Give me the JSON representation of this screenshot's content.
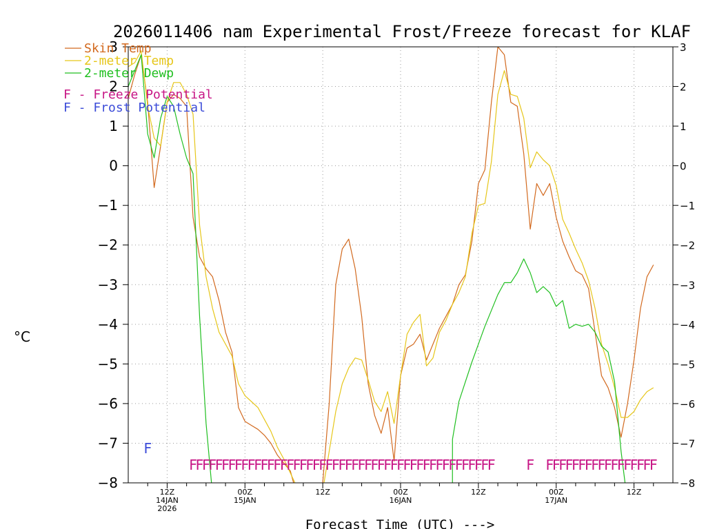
{
  "chart_data": {
    "type": "line",
    "title": "2026011406 nam Experimental Frost/Freeze forecast for KLAF",
    "ylabel": "°C",
    "xlabel": "Forecast Time (UTC) --->",
    "ylim": [
      -8,
      3
    ],
    "y_ticks": [
      3,
      2,
      1,
      0,
      -1,
      -2,
      -3,
      -4,
      -5,
      -6,
      -7,
      -8
    ],
    "y_tick_labels": [
      "3",
      "2",
      "1",
      "0",
      "−1",
      "−2",
      "−3",
      "−4",
      "−5",
      "−6",
      "−7",
      "−8"
    ],
    "y_tick_labels_right": [
      "3",
      "2",
      "1",
      "0",
      "−1",
      "−2",
      "−3",
      "−4",
      "−5",
      "−6",
      "−7",
      "−8"
    ],
    "xlim_hours": [
      0,
      84
    ],
    "x_ticks": [
      {
        "hour": 6,
        "line1": "12Z",
        "line2": "14JAN",
        "line3": "2026"
      },
      {
        "hour": 18,
        "line1": "00Z",
        "line2": "15JAN",
        "line3": ""
      },
      {
        "hour": 30,
        "line1": "12Z",
        "line2": "",
        "line3": ""
      },
      {
        "hour": 42,
        "line1": "00Z",
        "line2": "16JAN",
        "line3": ""
      },
      {
        "hour": 54,
        "line1": "12Z",
        "line2": "",
        "line3": ""
      },
      {
        "hour": 66,
        "line1": "00Z",
        "line2": "17JAN",
        "line3": ""
      },
      {
        "hour": 78,
        "line1": "12Z",
        "line2": "",
        "line3": ""
      }
    ],
    "legend": [
      {
        "label": "Skin Temp",
        "color": "#d2691e"
      },
      {
        "label": "2-meter Temp",
        "color": "#e6c619"
      },
      {
        "label": "2-meter Dewp",
        "color": "#1fbf1f"
      },
      {
        "label": "F - Freeze Potential",
        "color": "#c71585"
      },
      {
        "label": "F - Frost Potential",
        "color": "#3b4bd8"
      }
    ],
    "series": [
      {
        "name": "Skin Temp",
        "color": "#d2691e",
        "points": [
          [
            0,
            1.7
          ],
          [
            1,
            2.3
          ],
          [
            2,
            2.8
          ],
          [
            3,
            1.6
          ],
          [
            4,
            -0.55
          ],
          [
            5,
            0.5
          ],
          [
            6,
            1.6
          ],
          [
            7,
            1.8
          ],
          [
            8,
            1.7
          ],
          [
            9,
            1.5
          ],
          [
            10,
            -1.3
          ],
          [
            11,
            -2.3
          ],
          [
            12,
            -2.6
          ],
          [
            13,
            -2.8
          ],
          [
            14,
            -3.4
          ],
          [
            15,
            -4.2
          ],
          [
            16,
            -4.7
          ],
          [
            17,
            -6.1
          ],
          [
            18,
            -6.45
          ],
          [
            19,
            -6.55
          ],
          [
            20,
            -6.65
          ],
          [
            21,
            -6.8
          ],
          [
            22,
            -7.0
          ],
          [
            23,
            -7.3
          ],
          [
            24,
            -7.5
          ],
          [
            25,
            -7.7
          ],
          [
            26,
            -8.3
          ],
          [
            27,
            -8.6
          ],
          [
            28,
            -8.8
          ],
          [
            29,
            -8.5
          ],
          [
            30,
            -8.0
          ],
          [
            31,
            -6.0
          ],
          [
            32,
            -3.0
          ],
          [
            33,
            -2.1
          ],
          [
            34,
            -1.85
          ],
          [
            35,
            -2.6
          ],
          [
            36,
            -3.8
          ],
          [
            37,
            -5.5
          ],
          [
            38,
            -6.3
          ],
          [
            39,
            -6.75
          ],
          [
            40,
            -6.1
          ],
          [
            41,
            -7.45
          ],
          [
            42,
            -5.3
          ],
          [
            43,
            -4.6
          ],
          [
            44,
            -4.5
          ],
          [
            45,
            -4.25
          ],
          [
            46,
            -4.9
          ],
          [
            47,
            -4.5
          ],
          [
            48,
            -4.1
          ],
          [
            49,
            -3.8
          ],
          [
            50,
            -3.5
          ],
          [
            51,
            -3.0
          ],
          [
            52,
            -2.75
          ],
          [
            53,
            -1.9
          ],
          [
            54,
            -0.45
          ],
          [
            55,
            -0.1
          ],
          [
            56,
            1.6
          ],
          [
            57,
            3.0
          ],
          [
            58,
            2.8
          ],
          [
            59,
            1.6
          ],
          [
            60,
            1.5
          ],
          [
            61,
            0.3
          ],
          [
            62,
            -1.6
          ],
          [
            63,
            -0.45
          ],
          [
            64,
            -0.75
          ],
          [
            65,
            -0.45
          ],
          [
            66,
            -1.3
          ],
          [
            67,
            -1.9
          ],
          [
            68,
            -2.3
          ],
          [
            69,
            -2.65
          ],
          [
            70,
            -2.75
          ],
          [
            71,
            -3.1
          ],
          [
            72,
            -4.2
          ],
          [
            73,
            -5.3
          ],
          [
            74,
            -5.6
          ],
          [
            75,
            -6.1
          ],
          [
            76,
            -6.85
          ],
          [
            77,
            -6.0
          ],
          [
            78,
            -4.9
          ],
          [
            79,
            -3.6
          ],
          [
            80,
            -2.8
          ],
          [
            81,
            -2.5
          ]
        ]
      },
      {
        "name": "2-meter Temp",
        "color": "#e6c619",
        "points": [
          [
            0,
            2.5
          ],
          [
            1,
            2.6
          ],
          [
            2,
            2.9
          ],
          [
            3,
            1.5
          ],
          [
            4,
            0.7
          ],
          [
            5,
            0.5
          ],
          [
            6,
            1.6
          ],
          [
            7,
            2.1
          ],
          [
            8,
            2.1
          ],
          [
            9,
            1.8
          ],
          [
            10,
            1.3
          ],
          [
            11,
            -1.5
          ],
          [
            12,
            -2.8
          ],
          [
            13,
            -3.6
          ],
          [
            14,
            -4.2
          ],
          [
            15,
            -4.5
          ],
          [
            16,
            -4.8
          ],
          [
            17,
            -5.5
          ],
          [
            18,
            -5.8
          ],
          [
            19,
            -5.95
          ],
          [
            20,
            -6.1
          ],
          [
            21,
            -6.4
          ],
          [
            22,
            -6.7
          ],
          [
            23,
            -7.1
          ],
          [
            24,
            -7.4
          ],
          [
            25,
            -7.75
          ],
          [
            26,
            -8.1
          ],
          [
            27,
            -8.4
          ],
          [
            28,
            -8.6
          ],
          [
            29,
            -8.5
          ],
          [
            30,
            -8.2
          ],
          [
            31,
            -7.2
          ],
          [
            32,
            -6.2
          ],
          [
            33,
            -5.5
          ],
          [
            34,
            -5.1
          ],
          [
            35,
            -4.85
          ],
          [
            36,
            -4.9
          ],
          [
            37,
            -5.4
          ],
          [
            38,
            -5.95
          ],
          [
            39,
            -6.2
          ],
          [
            40,
            -5.7
          ],
          [
            41,
            -6.5
          ],
          [
            42,
            -5.3
          ],
          [
            43,
            -4.25
          ],
          [
            44,
            -3.95
          ],
          [
            45,
            -3.75
          ],
          [
            46,
            -5.05
          ],
          [
            47,
            -4.85
          ],
          [
            48,
            -4.2
          ],
          [
            49,
            -3.9
          ],
          [
            50,
            -3.5
          ],
          [
            51,
            -3.2
          ],
          [
            52,
            -2.8
          ],
          [
            53,
            -1.7
          ],
          [
            54,
            -1.0
          ],
          [
            55,
            -0.95
          ],
          [
            56,
            0.1
          ],
          [
            57,
            1.8
          ],
          [
            58,
            2.4
          ],
          [
            59,
            1.8
          ],
          [
            60,
            1.75
          ],
          [
            61,
            1.2
          ],
          [
            62,
            -0.05
          ],
          [
            63,
            0.35
          ],
          [
            64,
            0.15
          ],
          [
            65,
            0.0
          ],
          [
            66,
            -0.5
          ],
          [
            67,
            -1.35
          ],
          [
            68,
            -1.7
          ],
          [
            69,
            -2.1
          ],
          [
            70,
            -2.45
          ],
          [
            71,
            -2.9
          ],
          [
            72,
            -3.6
          ],
          [
            73,
            -4.5
          ],
          [
            74,
            -5.0
          ],
          [
            75,
            -5.6
          ],
          [
            76,
            -6.35
          ],
          [
            77,
            -6.35
          ],
          [
            78,
            -6.2
          ],
          [
            79,
            -5.9
          ],
          [
            80,
            -5.7
          ],
          [
            81,
            -5.6
          ]
        ]
      },
      {
        "name": "2-meter Dewp",
        "color": "#1fbf1f",
        "points": [
          [
            0,
            2.0
          ],
          [
            1,
            2.4
          ],
          [
            2,
            2.8
          ],
          [
            3,
            0.8
          ],
          [
            4,
            0.2
          ],
          [
            5,
            1.2
          ],
          [
            6,
            1.75
          ],
          [
            7,
            1.5
          ],
          [
            8,
            0.8
          ],
          [
            9,
            0.2
          ],
          [
            10,
            -0.2
          ],
          [
            11,
            -3.8
          ],
          [
            12,
            -6.5
          ],
          [
            13,
            -8.3
          ],
          [
            14,
            -9.0
          ],
          [
            15,
            -9.0
          ],
          [
            50,
            -9.0
          ],
          [
            50.01,
            -6.9
          ],
          [
            51,
            -5.95
          ],
          [
            52,
            -5.45
          ],
          [
            53,
            -4.95
          ],
          [
            54,
            -4.5
          ],
          [
            55,
            -4.05
          ],
          [
            56,
            -3.65
          ],
          [
            57,
            -3.25
          ],
          [
            58,
            -2.95
          ],
          [
            59,
            -2.95
          ],
          [
            60,
            -2.7
          ],
          [
            61,
            -2.35
          ],
          [
            62,
            -2.7
          ],
          [
            63,
            -3.2
          ],
          [
            64,
            -3.05
          ],
          [
            65,
            -3.2
          ],
          [
            66,
            -3.55
          ],
          [
            67,
            -3.4
          ],
          [
            68,
            -4.1
          ],
          [
            69,
            -4.0
          ],
          [
            70,
            -4.05
          ],
          [
            71,
            -4.0
          ],
          [
            72,
            -4.2
          ],
          [
            73,
            -4.55
          ],
          [
            74,
            -4.7
          ],
          [
            75,
            -5.45
          ],
          [
            76,
            -7.2
          ],
          [
            77,
            -8.5
          ],
          [
            78,
            -9.0
          ],
          [
            81,
            -9.0
          ]
        ]
      }
    ],
    "freeze_symbol": "F",
    "frost_symbol": "F",
    "freeze_hours": [
      10,
      11,
      12,
      13,
      14,
      15,
      16,
      17,
      18,
      19,
      20,
      21,
      22,
      23,
      24,
      25,
      26,
      27,
      28,
      29,
      30,
      31,
      32,
      33,
      34,
      35,
      36,
      37,
      38,
      39,
      40,
      41,
      42,
      43,
      44,
      45,
      46,
      47,
      48,
      49,
      50,
      51,
      52,
      53,
      54,
      55,
      56,
      62,
      65,
      66,
      67,
      68,
      69,
      70,
      71,
      72,
      73,
      74,
      75,
      76,
      77,
      78,
      79,
      80,
      81
    ],
    "frost_hours": [
      3
    ]
  }
}
